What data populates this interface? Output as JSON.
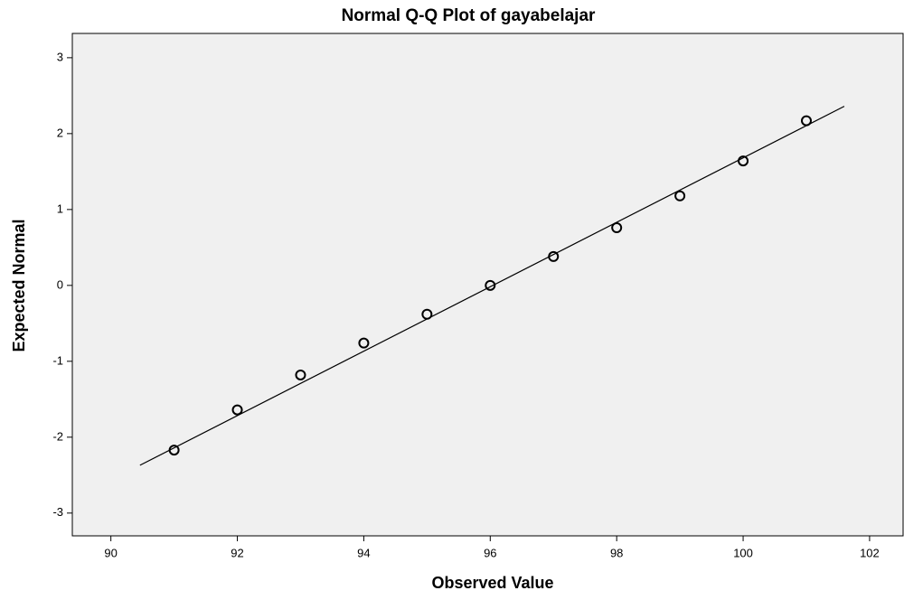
{
  "chart_data": {
    "type": "scatter",
    "title": "Normal Q-Q Plot of gayabelajar",
    "x_label": "Observed Value",
    "y_label": "Expected Normal",
    "x": [
      91,
      92,
      93,
      94,
      95,
      96,
      97,
      98,
      99,
      100,
      101
    ],
    "values": [
      -2.17,
      -1.64,
      -1.18,
      -0.76,
      -0.38,
      0,
      0.38,
      0.76,
      1.18,
      1.64,
      2.17
    ],
    "fit_line": {
      "x": [
        90.46,
        101.6
      ],
      "y": [
        -2.37,
        2.36
      ]
    },
    "xlim": [
      89.39,
      102.53
    ],
    "ylim": [
      -3.3,
      3.32
    ],
    "xticks": [
      90,
      92,
      94,
      96,
      98,
      100,
      102
    ],
    "yticks": [
      -3,
      -2,
      -1,
      0,
      1,
      2,
      3
    ],
    "color": "#000000"
  }
}
